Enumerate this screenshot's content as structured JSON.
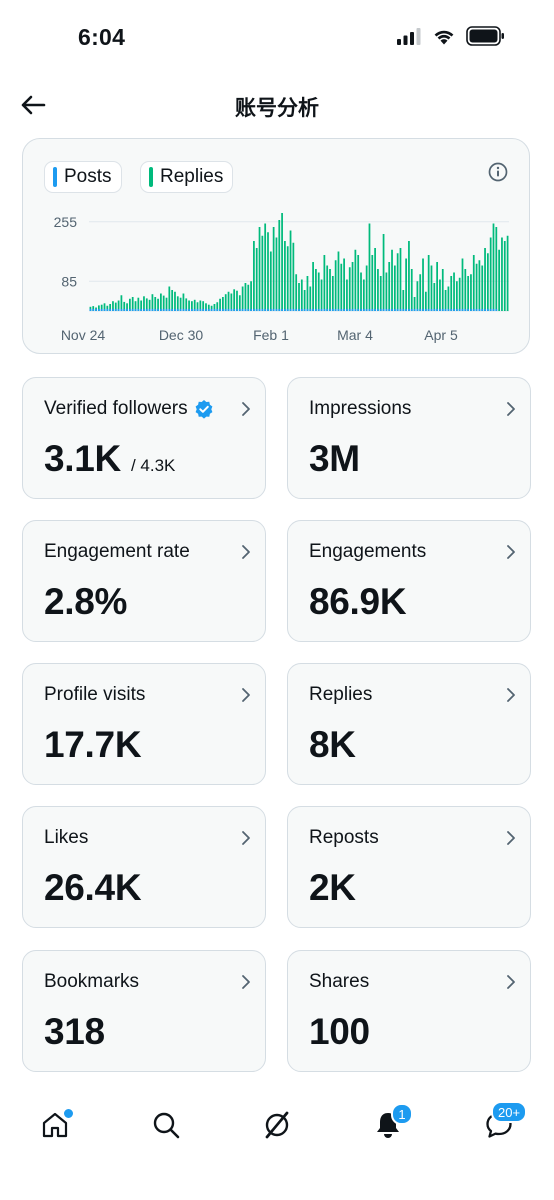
{
  "status_bar": {
    "time": "6:04"
  },
  "header": {
    "title": "账号分析"
  },
  "chart": {
    "legend": [
      {
        "label": "Posts",
        "color": "#1d9bf0"
      },
      {
        "label": "Replies",
        "color": "#00ba7c"
      }
    ]
  },
  "chart_data": {
    "type": "bar",
    "title": "",
    "xlabel": "",
    "ylabel": "",
    "x_tick_labels": [
      "Nov 24",
      "Dec 30",
      "Feb 1",
      "Mar 4",
      "Apr 5"
    ],
    "y_ticks": [
      255,
      85
    ],
    "ylim": [
      0,
      280
    ],
    "grid": true,
    "series": [
      {
        "name": "Posts",
        "color": "#1d9bf0",
        "values": [
          6,
          6,
          6,
          6,
          6,
          6,
          6,
          6,
          6,
          6,
          6,
          6,
          6,
          6,
          6,
          6,
          6,
          6,
          6,
          6,
          6,
          6,
          6,
          6,
          6,
          6,
          6,
          6,
          6,
          6,
          6,
          6,
          6,
          6,
          6,
          6,
          6,
          6,
          6,
          6,
          6,
          6,
          6,
          6,
          6,
          6,
          6,
          6,
          6,
          6,
          6,
          6,
          6,
          6,
          6,
          6,
          6,
          6,
          6,
          6,
          6,
          6,
          6,
          6,
          6,
          6,
          6,
          6,
          6,
          6,
          6,
          6,
          6,
          6,
          6,
          6,
          6,
          6,
          6,
          6,
          6,
          6,
          6,
          6,
          6,
          6,
          6,
          6,
          6,
          6,
          6,
          6,
          6,
          6,
          6,
          6,
          6,
          6,
          6,
          6,
          6,
          6,
          6,
          6,
          6,
          6,
          6,
          6,
          6,
          6,
          6,
          6,
          6,
          6,
          6,
          6,
          6,
          6,
          6,
          6,
          6,
          6,
          6,
          6,
          6,
          6,
          6,
          6,
          6,
          6,
          6,
          6,
          6,
          6,
          6,
          6,
          6,
          6,
          6,
          6,
          6,
          6,
          6,
          6,
          6
        ]
      },
      {
        "name": "Replies",
        "color": "#00ba7c",
        "values": [
          12,
          14,
          10,
          16,
          18,
          22,
          15,
          20,
          28,
          24,
          30,
          45,
          26,
          22,
          35,
          40,
          28,
          38,
          30,
          42,
          36,
          32,
          48,
          40,
          35,
          50,
          44,
          38,
          70,
          60,
          55,
          42,
          38,
          50,
          36,
          30,
          28,
          32,
          25,
          30,
          28,
          22,
          18,
          15,
          20,
          25,
          35,
          40,
          48,
          55,
          50,
          62,
          58,
          45,
          70,
          80,
          75,
          85,
          200,
          180,
          240,
          215,
          250,
          225,
          170,
          240,
          210,
          260,
          280,
          200,
          185,
          230,
          195,
          105,
          80,
          90,
          60,
          100,
          70,
          140,
          120,
          110,
          90,
          160,
          130,
          120,
          100,
          145,
          170,
          135,
          150,
          90,
          125,
          140,
          175,
          160,
          110,
          90,
          130,
          250,
          160,
          180,
          120,
          100,
          220,
          110,
          140,
          175,
          130,
          165,
          180,
          60,
          150,
          200,
          120,
          40,
          85,
          105,
          150,
          55,
          160,
          130,
          80,
          140,
          90,
          120,
          60,
          70,
          100,
          110,
          85,
          95,
          150,
          120,
          100,
          105,
          160,
          135,
          145,
          130,
          180,
          165,
          210,
          250,
          240,
          175,
          210,
          200,
          215
        ]
      }
    ]
  },
  "metrics": [
    {
      "label": "Verified followers",
      "value": "3.1K",
      "sub": "/ 4.3K"
    },
    {
      "label": "Impressions",
      "value": "3M"
    },
    {
      "label": "Engagement rate",
      "value": "2.8%"
    },
    {
      "label": "Engagements",
      "value": "86.9K"
    },
    {
      "label": "Profile visits",
      "value": "17.7K"
    },
    {
      "label": "Replies",
      "value": "8K"
    },
    {
      "label": "Likes",
      "value": "26.4K"
    },
    {
      "label": "Reposts",
      "value": "2K"
    },
    {
      "label": "Bookmarks",
      "value": "318"
    },
    {
      "label": "Shares",
      "value": "100"
    }
  ],
  "nav": {
    "items": [
      "home-icon",
      "search-icon",
      "grok-icon",
      "notifications-icon",
      "messages-icon"
    ],
    "notifications_badge": "1",
    "messages_badge": "20+"
  },
  "colors": {
    "accent": "#1d9bf0",
    "replies": "#00ba7c",
    "card_bg": "#f7f9f9",
    "border": "#d5dde3"
  }
}
